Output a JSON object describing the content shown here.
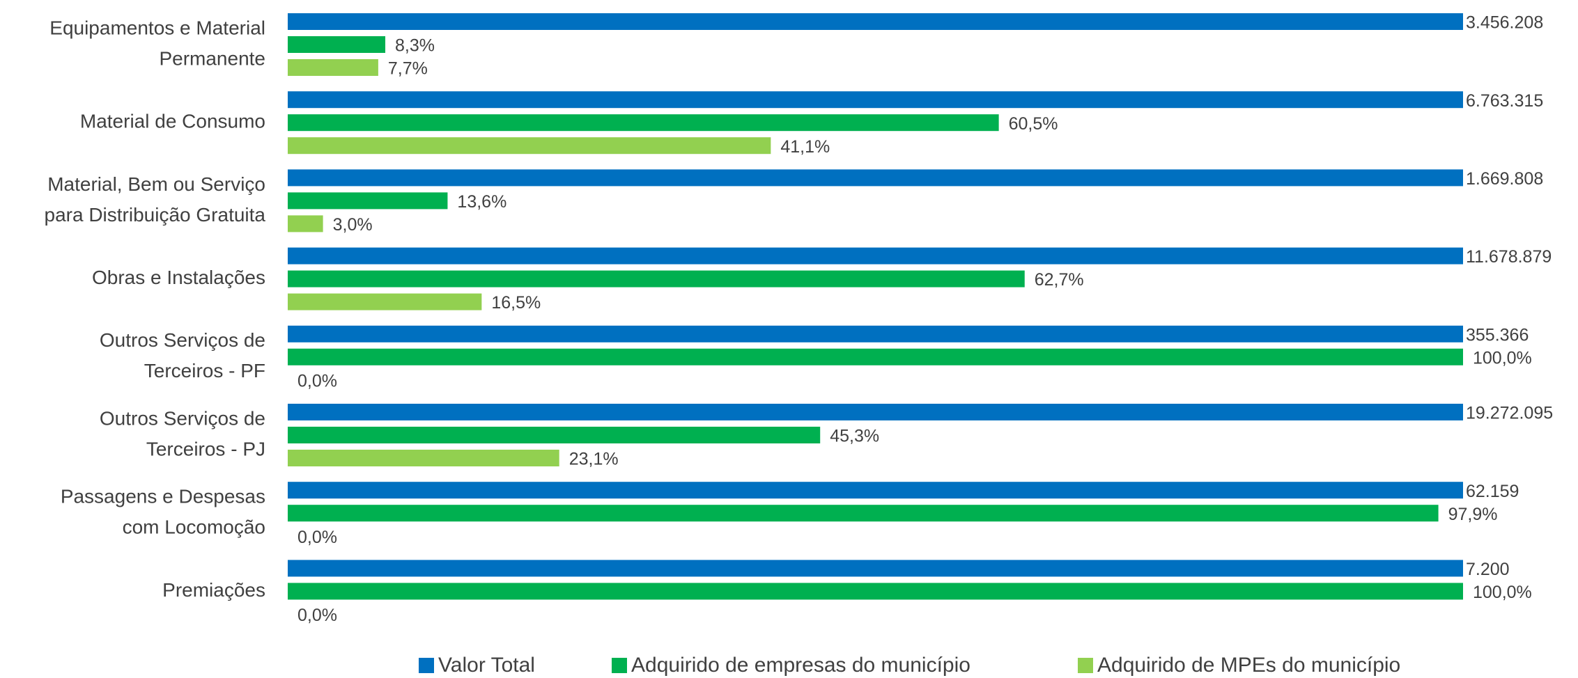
{
  "chart_data": {
    "type": "bar",
    "orientation": "horizontal",
    "categories": [
      [
        "Equipamentos e Material",
        "Permanente"
      ],
      [
        "Material de Consumo"
      ],
      [
        "Material, Bem ou Serviço",
        "para Distribuição Gratuita"
      ],
      [
        "Obras e Instalações"
      ],
      [
        "Outros Serviços de",
        "Terceiros - PF"
      ],
      [
        "Outros Serviços de",
        "Terceiros - PJ"
      ],
      [
        "Passagens e Despesas",
        "com Locomoção"
      ],
      [
        "Premiações"
      ]
    ],
    "xlim": [
      0,
      100
    ],
    "series": [
      {
        "name": "Valor Total",
        "color": "#0070c0",
        "values": [
          3456208,
          6763315,
          1669808,
          11678879,
          355366,
          19272095,
          62159,
          7200
        ],
        "value_labels": [
          "3.456.208",
          "6.763.315",
          "1.669.808",
          "11.678.879",
          "355.366",
          "19.272.095",
          "62.159",
          "7.200"
        ]
      },
      {
        "name": "Adquirido de empresas do município",
        "color": "#00b050",
        "values": [
          8.3,
          60.5,
          13.6,
          62.7,
          100,
          45.3,
          97.9,
          100
        ],
        "value_labels": [
          "8,3%",
          "60,5%",
          "13,6%",
          "62,7%",
          "100,0%",
          "45,3%",
          "97,9%",
          "100,0%"
        ]
      },
      {
        "name": "Adquirido de MPEs do município",
        "color": "#92d050",
        "values": [
          7.7,
          41.1,
          3.0,
          16.5,
          0,
          23.1,
          0,
          0
        ],
        "value_labels": [
          "7,7%",
          "41,1%",
          "3,0%",
          "16,5%",
          "0,0%",
          "23,1%",
          "0,0%",
          "0,0%"
        ]
      }
    ],
    "legend": "bottom"
  }
}
